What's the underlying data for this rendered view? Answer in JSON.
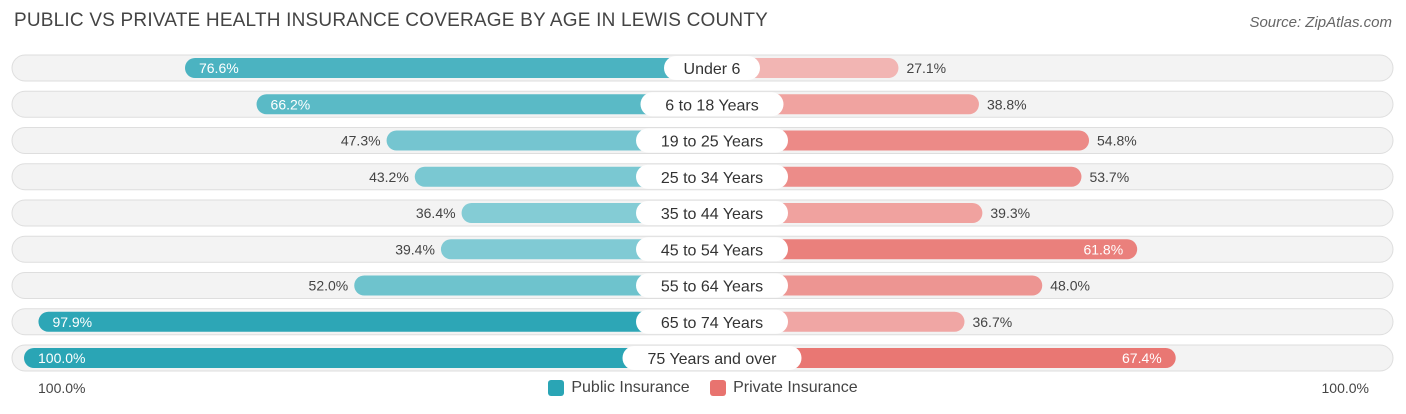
{
  "title": "PUBLIC VS PRIVATE HEALTH INSURANCE COVERAGE BY AGE IN LEWIS COUNTY",
  "source": "Source: ZipAtlas.com",
  "axis": {
    "left_label": "100.0%",
    "right_label": "100.0%"
  },
  "legend": [
    {
      "label": "Public Insurance",
      "color": "#2aa5b5"
    },
    {
      "label": "Private Insurance",
      "color": "#e8736f"
    }
  ],
  "chart_data": {
    "type": "bar",
    "orientation": "horizontal-diverging",
    "categories": [
      "Under 6",
      "6 to 18 Years",
      "19 to 25 Years",
      "25 to 34 Years",
      "35 to 44 Years",
      "45 to 54 Years",
      "55 to 64 Years",
      "65 to 74 Years",
      "75 Years and over"
    ],
    "series": [
      {
        "name": "Public Insurance",
        "values": [
          76.6,
          66.2,
          47.3,
          43.2,
          36.4,
          39.4,
          52.0,
          97.9,
          100.0
        ],
        "labels": [
          "76.6%",
          "66.2%",
          "47.3%",
          "43.2%",
          "36.4%",
          "39.4%",
          "52.0%",
          "97.9%",
          "100.0%"
        ]
      },
      {
        "name": "Private Insurance",
        "values": [
          27.1,
          38.8,
          54.8,
          53.7,
          39.3,
          61.8,
          48.0,
          36.7,
          67.4
        ],
        "labels": [
          "27.1%",
          "38.8%",
          "54.8%",
          "53.7%",
          "39.3%",
          "61.8%",
          "48.0%",
          "36.7%",
          "67.4%"
        ]
      }
    ],
    "xlim": [
      0,
      100
    ],
    "grid": false,
    "legend_position": "bottom-center"
  }
}
